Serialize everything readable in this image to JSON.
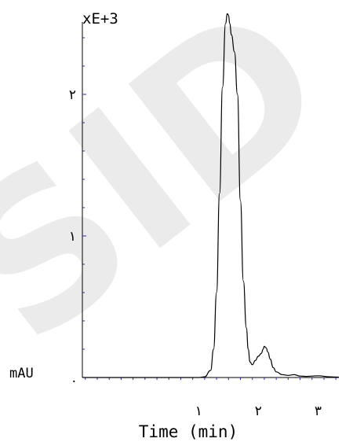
{
  "watermark": {
    "text": "SID",
    "color": "#dcdcdc"
  },
  "chart_data": {
    "type": "line",
    "title": "",
    "xlabel": "Time (min)",
    "ylabel": "mAU",
    "y_multiplier_label": "xE+3",
    "xlim": [
      -0.95,
      3.35
    ],
    "ylim": [
      0,
      2.5
    ],
    "x_ticks": [
      {
        "value": 1,
        "label": "١"
      },
      {
        "value": 2,
        "label": "٢"
      },
      {
        "value": 3,
        "label": "٣"
      }
    ],
    "y_ticks": [
      {
        "value": 0,
        "label": "."
      },
      {
        "value": 1,
        "label": "١"
      },
      {
        "value": 2,
        "label": "٢"
      }
    ],
    "grid": false,
    "line_color": "#000000",
    "tick_color": "#2a2ab0",
    "series": [
      {
        "x": [
          -0.95,
          0.0,
          1.0,
          1.1,
          1.2,
          1.25,
          1.3,
          1.35,
          1.4,
          1.45,
          1.48,
          1.5,
          1.52,
          1.55,
          1.6,
          1.65,
          1.7,
          1.75,
          1.8,
          1.83,
          1.86,
          1.9,
          1.95,
          2.0,
          2.05,
          2.08,
          2.1,
          2.13,
          2.16,
          2.2,
          2.25,
          2.3,
          2.4,
          2.5,
          2.6,
          2.7,
          2.8,
          3.0,
          3.2,
          3.35
        ],
        "y": [
          0.0,
          0.0,
          0.0,
          0.005,
          0.05,
          0.2,
          0.6,
          1.3,
          2.05,
          2.5,
          2.57,
          2.56,
          2.5,
          2.42,
          2.3,
          2.0,
          1.25,
          0.68,
          0.35,
          0.2,
          0.11,
          0.09,
          0.12,
          0.15,
          0.17,
          0.2,
          0.22,
          0.21,
          0.18,
          0.13,
          0.07,
          0.04,
          0.02,
          0.015,
          0.02,
          0.01,
          0.008,
          0.012,
          0.005,
          0.003
        ]
      }
    ]
  }
}
